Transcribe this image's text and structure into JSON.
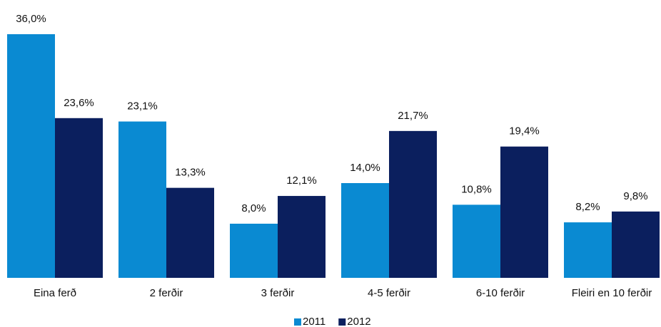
{
  "chart_data": {
    "type": "bar",
    "categories": [
      "Eina ferð",
      "2 ferðir",
      "3 ferðir",
      "4-5 ferðir",
      "6-10 ferðir",
      "Fleiri en 10 ferðir"
    ],
    "series": [
      {
        "name": "2011",
        "color": "#0a8ad2",
        "values": [
          36.0,
          23.1,
          8.0,
          14.0,
          10.8,
          8.2
        ],
        "value_labels": [
          "36,0%",
          "23,1%",
          "8,0%",
          "14,0%",
          "10,8%",
          "8,2%"
        ]
      },
      {
        "name": "2012",
        "color": "#0b1f5e",
        "values": [
          23.6,
          13.3,
          12.1,
          21.7,
          19.4,
          9.8
        ],
        "value_labels": [
          "23,6%",
          "13,3%",
          "12,1%",
          "21,7%",
          "19,4%",
          "9,8%"
        ]
      }
    ],
    "legend": "bottom"
  }
}
